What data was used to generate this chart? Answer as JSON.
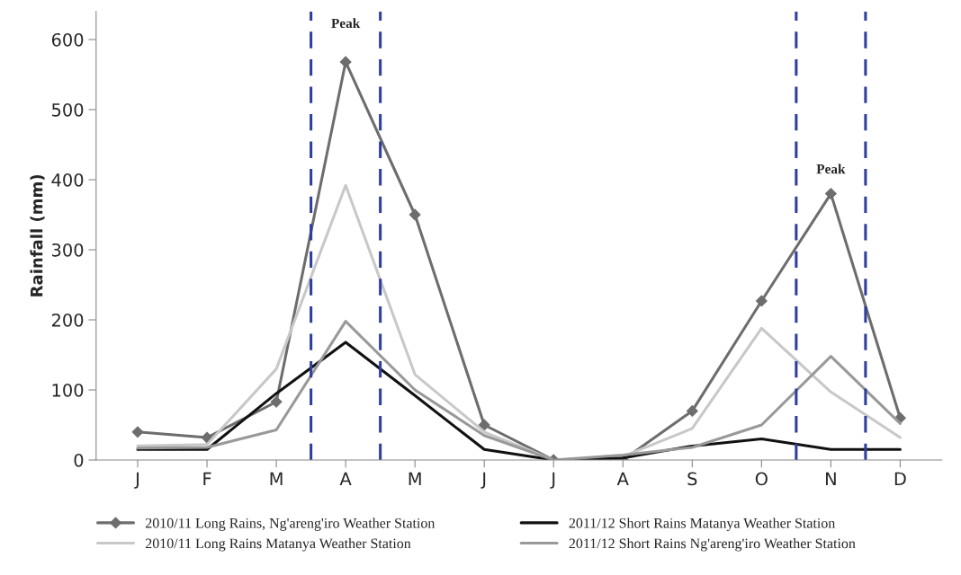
{
  "chart_data": {
    "type": "line",
    "ylabel": "Rainfall (mm)",
    "categories": [
      "J",
      "F",
      "M",
      "A",
      "M",
      "J",
      "J",
      "A",
      "S",
      "O",
      "N",
      "D"
    ],
    "series": [
      {
        "name": "2010/11 Long Rains, Ng'areng'iro Weather Station",
        "color": "#6d6d6d",
        "marker": "diamond",
        "values": [
          40,
          32,
          83,
          568,
          350,
          50,
          0,
          0,
          70,
          227,
          380,
          60
        ]
      },
      {
        "name": "2010/11 Long Rains Matanya Weather Station",
        "color": "#c8c8c8",
        "marker": "none",
        "values": [
          20,
          22,
          130,
          392,
          122,
          40,
          0,
          5,
          45,
          188,
          97,
          32
        ]
      },
      {
        "name": "2011/12 Short Rains Matanya Weather Station",
        "color": "#111111",
        "marker": "none",
        "values": [
          15,
          15,
          95,
          168,
          92,
          15,
          0,
          3,
          20,
          30,
          15,
          15
        ]
      },
      {
        "name": "2011/12 Short Rains Ng'areng'iro Weather Station",
        "color": "#999999",
        "marker": "none",
        "values": [
          17,
          18,
          43,
          198,
          100,
          35,
          0,
          7,
          18,
          50,
          148,
          52
        ]
      }
    ],
    "ylim": [
      0,
      640
    ],
    "yticks": [
      0,
      100,
      200,
      300,
      400,
      500,
      600
    ],
    "annotations": [
      "Peak",
      "Peak"
    ],
    "grid": false,
    "legend": "bottom"
  }
}
